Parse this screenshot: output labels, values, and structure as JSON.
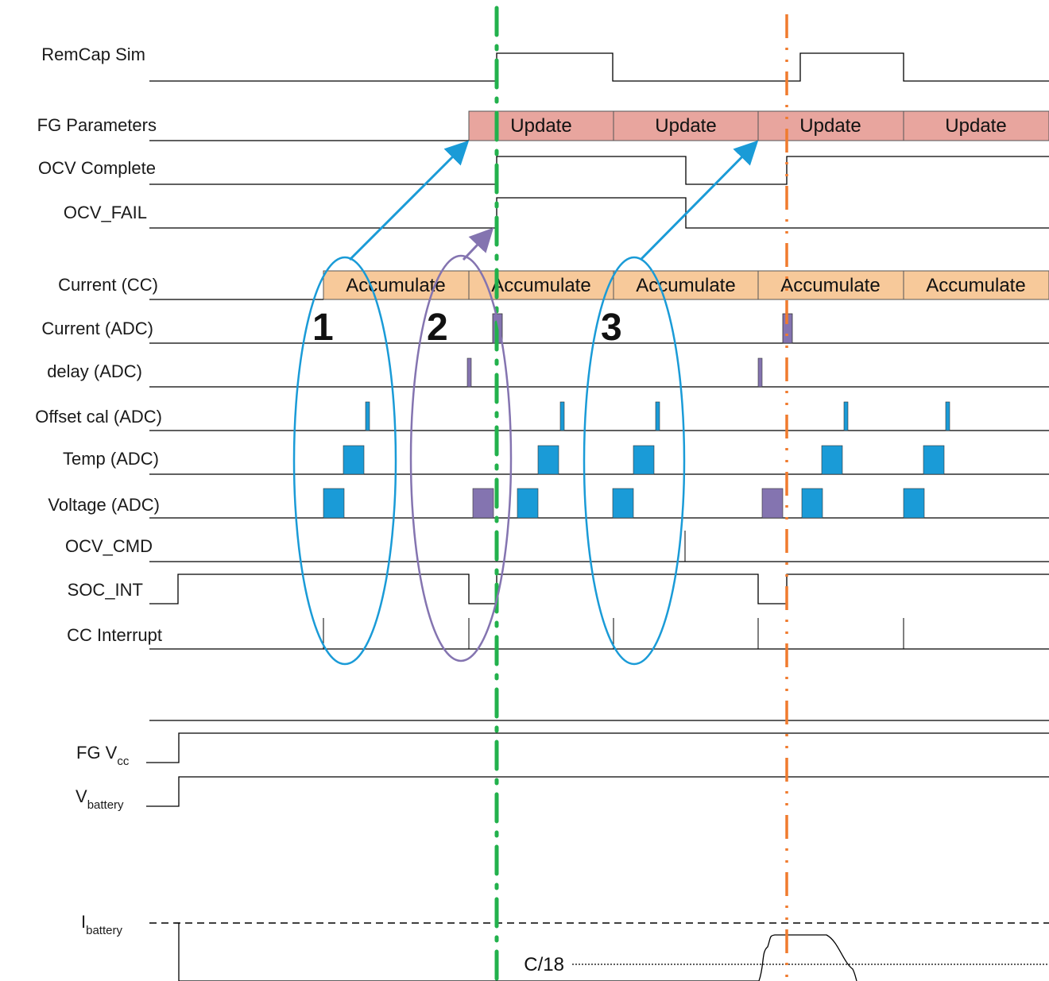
{
  "signals": {
    "remcap_sim": "RemCap Sim",
    "fg_parameters": "FG Parameters",
    "ocv_complete": "OCV Complete",
    "ocv_fail": "OCV_FAIL",
    "current_cc": "Current (CC)",
    "current_adc": "Current (ADC)",
    "delay_adc": "delay (ADC)",
    "offset_cal_adc": "Offset cal (ADC)",
    "temp_adc": "Temp (ADC)",
    "voltage_adc": "Voltage (ADC)",
    "ocv_cmd": "OCV_CMD",
    "soc_int": "SOC_INT",
    "cc_interrupt": "CC Interrupt",
    "fg_vcc": {
      "base": "FG V",
      "sub": "cc"
    },
    "v_battery": {
      "base": "V",
      "sub": "battery"
    },
    "i_battery": {
      "base": "I",
      "sub": "battery"
    }
  },
  "update_blocks": [
    "Update",
    "Update",
    "Update",
    "Update"
  ],
  "accumulate_blocks": [
    "Accumulate",
    "Accumulate",
    "Accumulate",
    "Accumulate",
    "Accumulate"
  ],
  "markers": [
    "1",
    "2",
    "3"
  ],
  "level_label": "C/18",
  "colors": {
    "update_fill": "#e8a59e",
    "accumulate_fill": "#f7c99a",
    "adc_blue": "#1a9bd7",
    "adc_purple": "#8474b0",
    "green_marker": "#22b14c",
    "orange_marker": "#f07b2e",
    "ellipse_blue": "#1a9bd7",
    "ellipse_purple": "#8474b0"
  }
}
